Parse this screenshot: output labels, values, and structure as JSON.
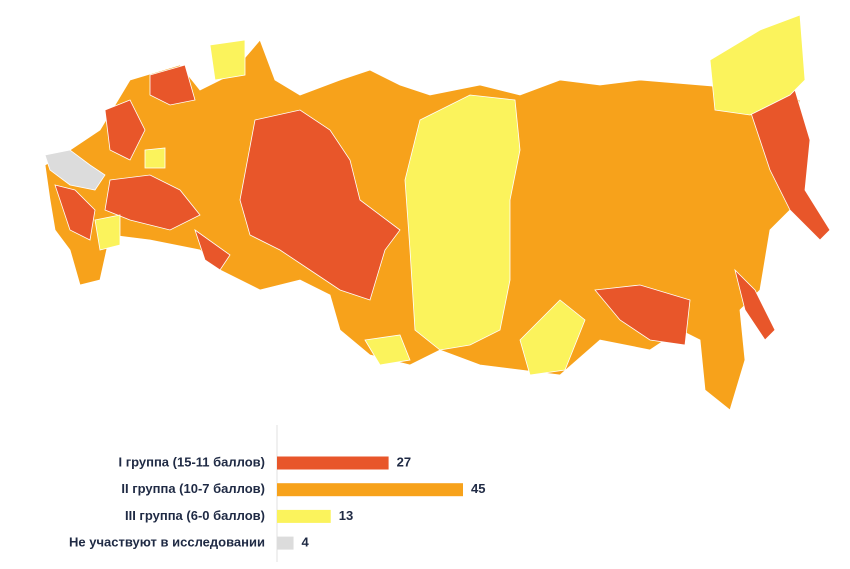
{
  "chart_data": {
    "type": "bar",
    "orientation": "horizontal",
    "categories": [
      "I группа (15-11 баллов)",
      "II группа (10-7 баллов)",
      "III группа (6-0 баллов)",
      "Не участвуют в исследовании"
    ],
    "values": [
      27,
      45,
      13,
      4
    ],
    "colors": [
      "#e8562a",
      "#f7a21b",
      "#fbf35c",
      "#dcdcdc"
    ]
  }
}
